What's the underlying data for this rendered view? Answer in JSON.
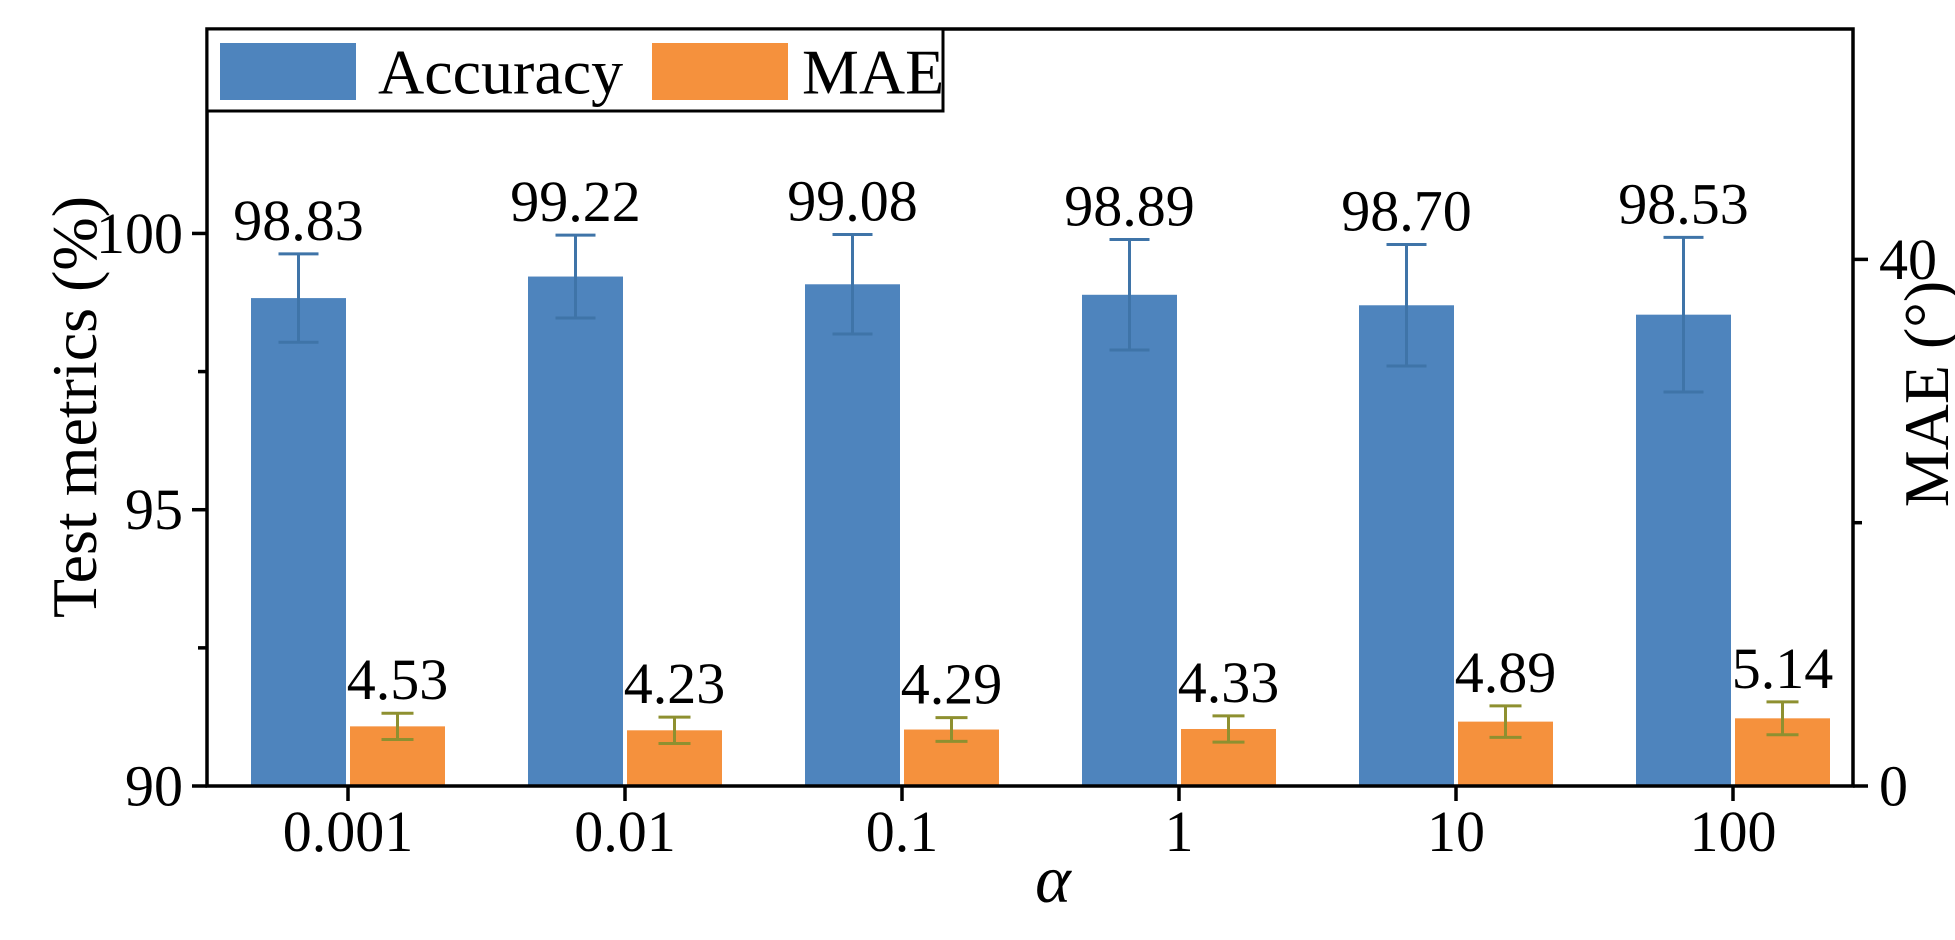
{
  "chart_data": {
    "type": "bar",
    "title": "",
    "xlabel": "α",
    "ylabel_left": "Test metrics (%)",
    "ylabel_right": "MAE (°)",
    "categories": [
      "0.001",
      "0.01",
      "0.1",
      "1",
      "10",
      "100"
    ],
    "left_axis": {
      "range": [
        90,
        103.7
      ],
      "ticks": [
        90,
        95,
        100
      ],
      "tick_labels": [
        "90",
        "95",
        "100"
      ],
      "minor_ticks": [
        92.5,
        97.5
      ]
    },
    "right_axis": {
      "range": [
        0,
        57.5
      ],
      "ticks": [
        0,
        40
      ],
      "tick_labels": [
        "0",
        "40"
      ],
      "minor_ticks": [
        20
      ]
    },
    "series": [
      {
        "name": "Accuracy",
        "axis": "left",
        "color": "#4e84bd",
        "error_color": "#3f74a8",
        "values": [
          98.83,
          99.22,
          99.08,
          98.89,
          98.7,
          98.53
        ],
        "errors": [
          0.8,
          0.75,
          0.9,
          1.0,
          1.1,
          1.4
        ],
        "labels": [
          "98.83",
          "99.22",
          "99.08",
          "98.89",
          "98.70",
          "98.53"
        ]
      },
      {
        "name": "MAE",
        "axis": "right",
        "color": "#f5913d",
        "error_color": "#8e9030",
        "values": [
          4.53,
          4.23,
          4.29,
          4.33,
          4.89,
          5.14
        ],
        "errors": [
          1.0,
          1.0,
          0.9,
          1.0,
          1.2,
          1.25
        ],
        "labels": [
          "4.53",
          "4.23",
          "4.29",
          "4.33",
          "4.89",
          "5.14"
        ]
      }
    ],
    "legend": {
      "position": "top-left",
      "entries": [
        "Accuracy",
        "MAE"
      ]
    },
    "grid": false,
    "background": "#ffffff"
  }
}
